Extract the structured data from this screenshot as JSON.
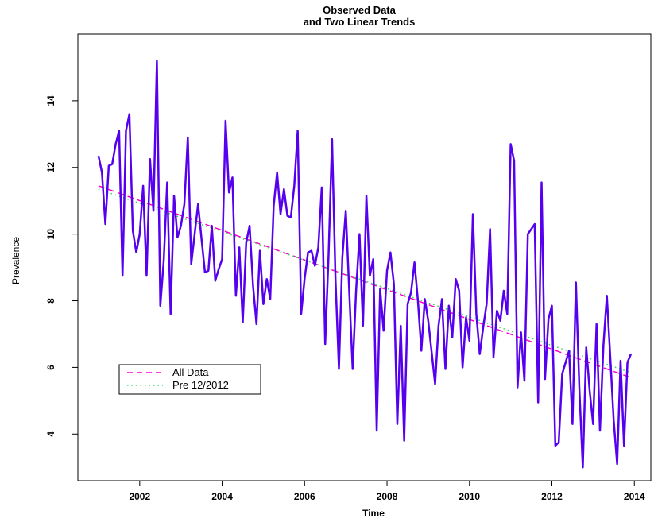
{
  "chart_data": {
    "type": "line",
    "title": "Observed Data\nand Two Linear Trends",
    "xlabel": "Time",
    "ylabel": "Prevalence",
    "xlim": [
      2000.5,
      2014.4
    ],
    "ylim": [
      2.6,
      16.0
    ],
    "x_ticks": [
      2002,
      2004,
      2006,
      2008,
      2010,
      2012,
      2014
    ],
    "y_ticks": [
      4,
      6,
      8,
      10,
      12,
      14
    ],
    "grid": false,
    "legend_position": "bottom-left",
    "start": 2001,
    "step": 0.08333,
    "series": [
      {
        "name": "",
        "color": "#5500ee",
        "style": "solid",
        "values": [
          12.35,
          11.85,
          10.3,
          12.05,
          12.1,
          12.7,
          13.1,
          8.75,
          13.1,
          13.6,
          10.1,
          9.45,
          10.0,
          11.45,
          8.75,
          12.25,
          10.7,
          15.2,
          7.85,
          9.2,
          11.55,
          7.6,
          11.15,
          9.9,
          10.25,
          10.9,
          12.9,
          9.1,
          10.0,
          10.9,
          9.85,
          8.85,
          8.9,
          10.25,
          8.6,
          8.95,
          9.25,
          13.4,
          11.25,
          11.7,
          8.15,
          9.6,
          7.35,
          9.75,
          10.25,
          8.45,
          7.3,
          9.5,
          7.9,
          8.65,
          8.05,
          10.85,
          11.85,
          10.6,
          11.35,
          10.55,
          10.5,
          11.45,
          13.1,
          7.6,
          8.65,
          9.45,
          9.5,
          9.05,
          9.6,
          11.4,
          6.7,
          9.4,
          12.85,
          8.65,
          5.95,
          9.3,
          10.7,
          8.3,
          5.95,
          8.3,
          10.0,
          7.25,
          11.15,
          8.75,
          9.25,
          4.1,
          8.35,
          7.1,
          8.9,
          9.45,
          8.5,
          4.3,
          7.25,
          3.8,
          7.9,
          8.25,
          9.15,
          8.0,
          6.5,
          8.05,
          7.4,
          6.45,
          5.5,
          7.25,
          8.05,
          5.95,
          7.85,
          6.9,
          8.65,
          8.3,
          6.0,
          7.5,
          6.8,
          10.6,
          7.6,
          6.4,
          7.2,
          7.9,
          10.15,
          6.3,
          7.7,
          7.4,
          8.3,
          7.6,
          12.7,
          12.2,
          5.4,
          7.05,
          5.6,
          10.0,
          10.15,
          10.3,
          4.95,
          11.55,
          5.65,
          7.45,
          7.85,
          3.65,
          3.75,
          5.8,
          6.15,
          6.5,
          4.3,
          8.55,
          5.35,
          3.0,
          6.6,
          5.3,
          4.3,
          7.3,
          4.1,
          6.65,
          8.15,
          6.3,
          4.4,
          3.1,
          6.2,
          3.65,
          6.15,
          6.4
        ]
      },
      {
        "name": "All Data",
        "color": "#ff00cc",
        "style": "dashed",
        "x": [
          2001.0,
          2013.9
        ],
        "values": [
          11.45,
          5.7
        ]
      },
      {
        "name": "Pre 12/2012",
        "color": "#33dd55",
        "style": "dotted",
        "x": [
          2001.0,
          2013.9
        ],
        "values": [
          11.35,
          5.85
        ]
      }
    ]
  }
}
